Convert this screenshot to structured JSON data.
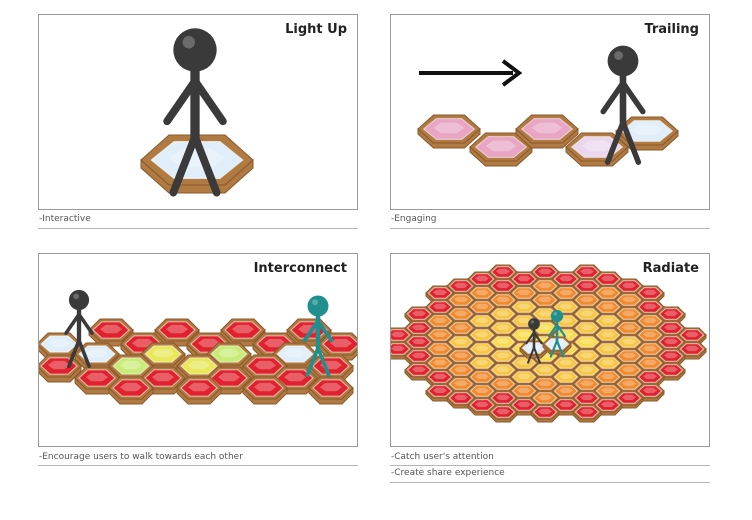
{
  "panels": [
    {
      "title": "Light Up",
      "caption": "-Interactive"
    },
    {
      "title": "Trailing",
      "caption": "-Engaging"
    },
    {
      "title": "Interconnect",
      "caption": "-Encourage users to walk towards each other"
    },
    {
      "title": "Radiate",
      "captions": [
        "-Catch user's attention",
        "-Create share experience"
      ]
    }
  ],
  "colors": {
    "tile_edge": "#8a5a2b",
    "tile_side": "#b07a43",
    "tile_lightblue": "#dfeef8",
    "tile_pink": "#e8a6c4",
    "tile_red": "#e0222e",
    "tile_yellow": "#e8e85a",
    "tile_lightgreen": "#c8ec78",
    "tile_orange": "#f08a2c",
    "tile_gold": "#f7c640",
    "figure_gray": "#3a3a3a",
    "figure_teal": "#1f8f8f"
  }
}
